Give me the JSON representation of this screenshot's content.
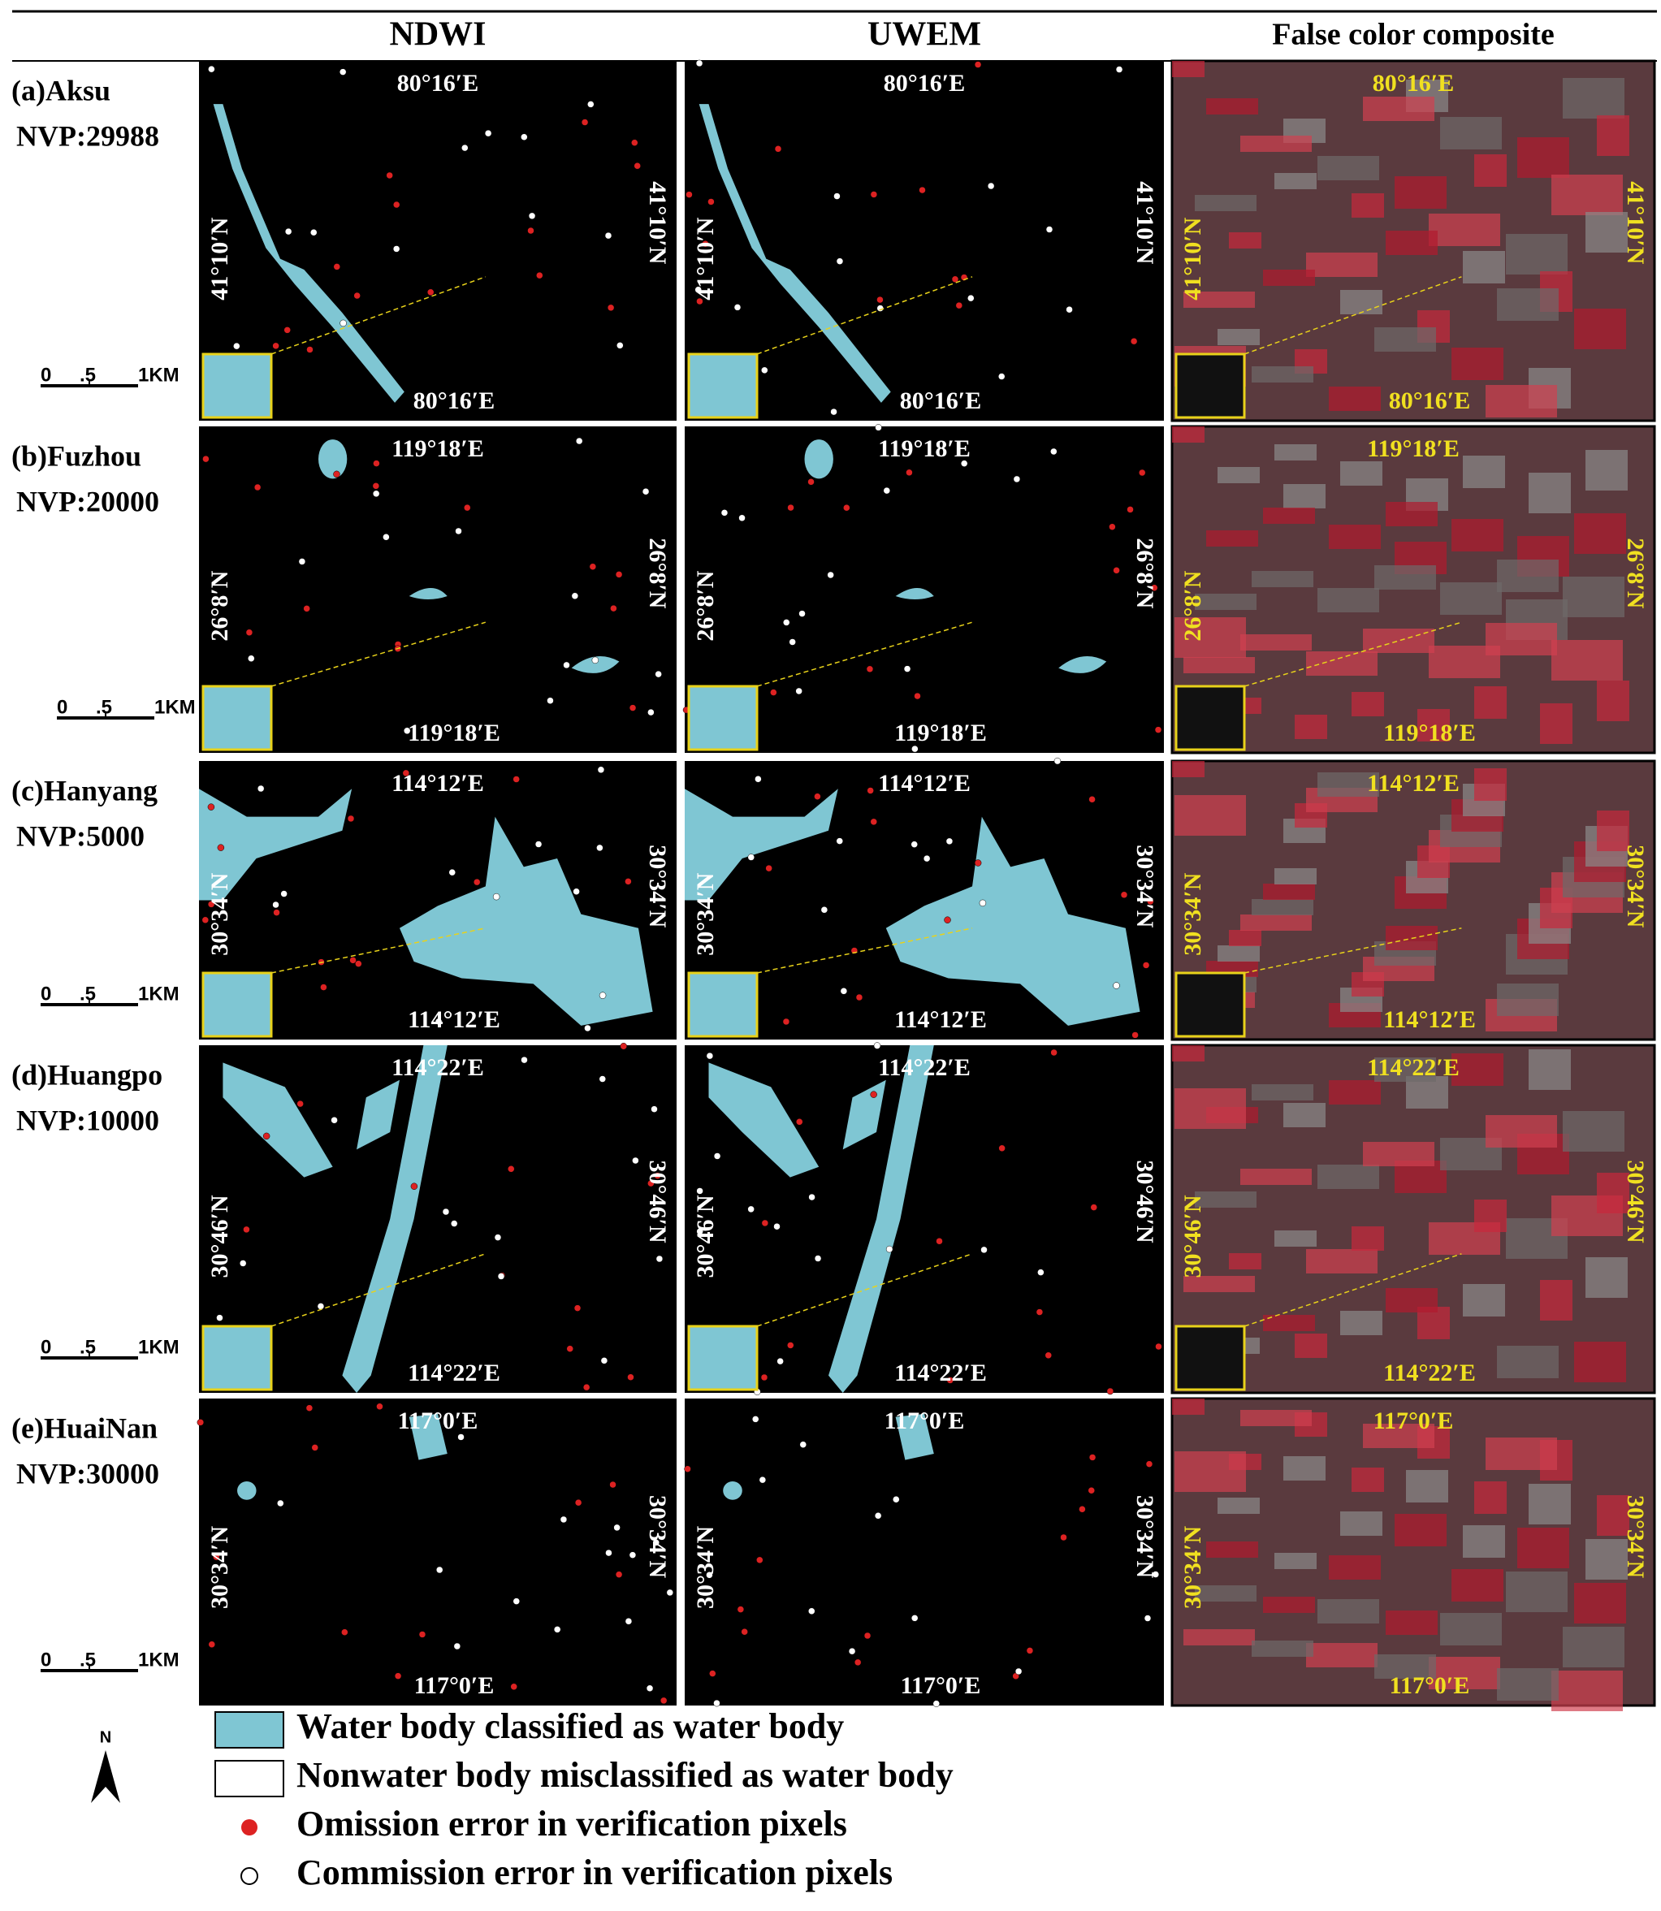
{
  "header": {
    "columns": [
      "NDWI",
      "UWEM",
      "False color composite"
    ]
  },
  "rows": [
    {
      "label": "(a)Aksu",
      "nvp": "NVP:29988",
      "lon": "80°16′E",
      "lat": "41°10′N"
    },
    {
      "label": "(b)Fuzhou",
      "nvp": "NVP:20000",
      "lon": "119°18′E",
      "lat": "26°8′N"
    },
    {
      "label": "(c)Hanyang",
      "nvp": "NVP:5000",
      "lon": "114°12′E",
      "lat": "30°34′N"
    },
    {
      "label": "(d)Huangpo",
      "nvp": "NVP:10000",
      "lon": "114°22′E",
      "lat": "30°46′N"
    },
    {
      "label": "(e)HuaiNan",
      "nvp": "NVP:30000",
      "lon": "117°0′E",
      "lat": "30°34′N"
    }
  ],
  "scale_bar": [
    "0",
    ".5",
    "1KM"
  ],
  "north": "N",
  "legend": [
    {
      "marker": "water",
      "text": "Water body classified as water body"
    },
    {
      "marker": "box",
      "text": "Nonwater body misclassified as water body"
    },
    {
      "marker": "red-dot",
      "text": "Omission error in verification pixels"
    },
    {
      "marker": "open-dot",
      "text": "Commission error in verification pixels"
    }
  ]
}
